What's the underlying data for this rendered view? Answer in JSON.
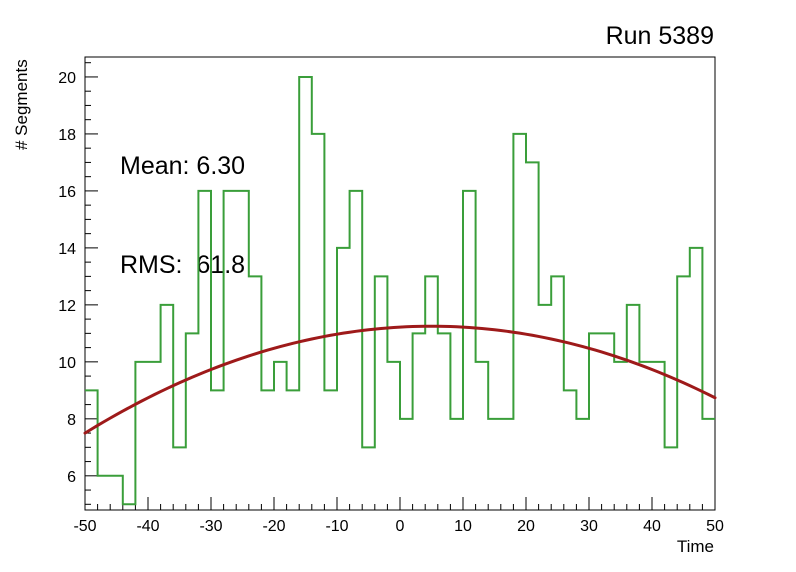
{
  "title": "Run 5389",
  "stats": {
    "mean_label": "Mean: 6.30",
    "rms_label": "RMS:  61.8"
  },
  "axes": {
    "x_label": "Time",
    "y_label": "# Segments"
  },
  "colors": {
    "histogram": "#3a9e3a",
    "fit": "#9e1a1a",
    "frame": "#000000",
    "background": "#ffffff",
    "text": "#000000"
  },
  "chart_data": {
    "type": "line",
    "subtype": "step-histogram-with-fit",
    "title": "Run 5389",
    "xlabel": "Time",
    "ylabel": "# Segments",
    "annotations": [
      "Mean: 6.30",
      "RMS:  61.8"
    ],
    "xlim": [
      -50,
      50
    ],
    "ylim": [
      4.8,
      20.7
    ],
    "x_ticks": [
      -50,
      -40,
      -30,
      -20,
      -10,
      0,
      10,
      20,
      30,
      40,
      50
    ],
    "y_ticks": [
      6,
      8,
      10,
      12,
      14,
      16,
      18,
      20
    ],
    "x_minor_step": 2,
    "y_minor_step": 0.5,
    "grid": false,
    "legend": "none",
    "histogram": {
      "bin_start": -50,
      "bin_width": 2,
      "values": [
        9,
        6,
        6,
        5,
        10,
        10,
        12,
        7,
        11,
        16,
        9,
        16,
        16,
        13,
        9,
        10,
        9,
        20,
        18,
        9,
        14,
        16,
        7,
        13,
        10,
        8,
        11,
        13,
        11,
        8,
        16,
        10,
        8,
        8,
        18,
        17,
        12,
        13,
        9,
        8,
        11,
        11,
        10,
        12,
        10,
        10,
        7,
        13,
        14,
        8
      ]
    },
    "fit_curve": {
      "type": "pol2",
      "peak_x": 5,
      "peak_y": 11.25,
      "a": -0.00124
    }
  }
}
